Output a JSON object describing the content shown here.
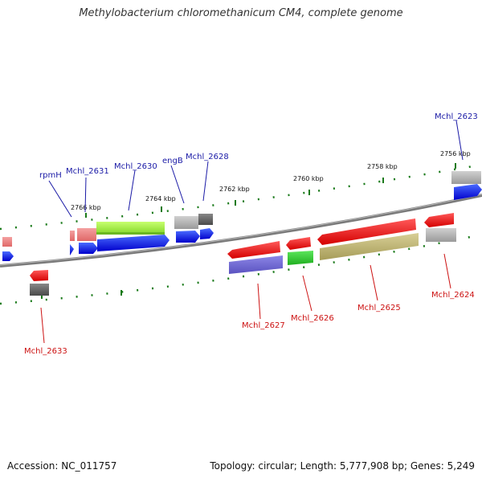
{
  "title": "Methylobacterium chloromethanicum CM4, complete genome",
  "footer": {
    "accession": "Accession: NC_011757",
    "summary": "Topology: circular; Length: 5,777,908 bp; Genes: 5,249"
  },
  "scale_labels": [
    "2766 kbp",
    "2764 kbp",
    "2762 kbp",
    "2760 kbp",
    "2758 kbp",
    "2756 kbp"
  ],
  "forward_gene_labels": [
    "rpmH",
    "Mchl_2631",
    "Mchl_2630",
    "engB",
    "Mchl_2628",
    "Mchl_2623"
  ],
  "reverse_gene_labels": [
    "Mchl_2633",
    "Mchl_2627",
    "Mchl_2626",
    "Mchl_2625",
    "Mchl_2624"
  ],
  "colors": {
    "forward_label": "#1a1aa6",
    "reverse_label": "#cc1111",
    "backbone": "#808080",
    "tick": "#1a7a1a"
  }
}
